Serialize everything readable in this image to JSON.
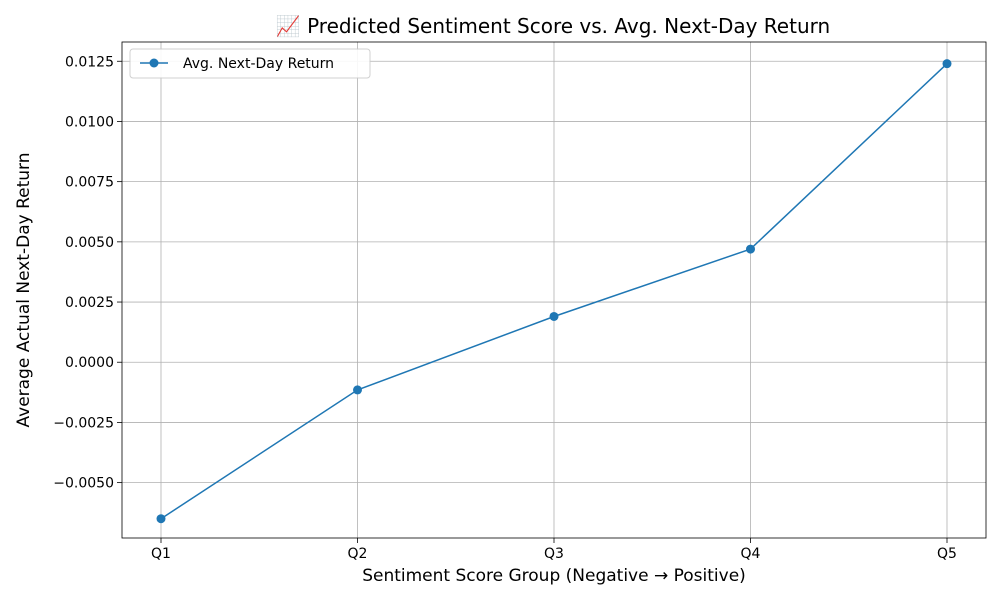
{
  "chart_data": {
    "type": "line",
    "title": "📈 Predicted Sentiment Score vs. Avg. Next-Day Return",
    "xlabel": "Sentiment Score Group (Negative → Positive)",
    "ylabel": "Average Actual Next-Day Return",
    "categories": [
      "Q1",
      "Q2",
      "Q3",
      "Q4",
      "Q5"
    ],
    "series": [
      {
        "name": "Avg. Next-Day Return",
        "values": [
          -0.0065,
          -0.00115,
          0.0019,
          0.0047,
          0.0124
        ],
        "color": "#1f77b4",
        "marker": "circle"
      }
    ],
    "ylim": [
      -0.0073,
      0.0133
    ],
    "yticks": [
      -0.005,
      -0.0025,
      0.0,
      0.0025,
      0.005,
      0.0075,
      0.01,
      0.0125
    ],
    "ytick_labels": [
      "−0.0050",
      "−0.0025",
      "0.0000",
      "0.0025",
      "0.0050",
      "0.0075",
      "0.0100",
      "0.0125"
    ],
    "grid": true,
    "legend_position": "top-left"
  }
}
